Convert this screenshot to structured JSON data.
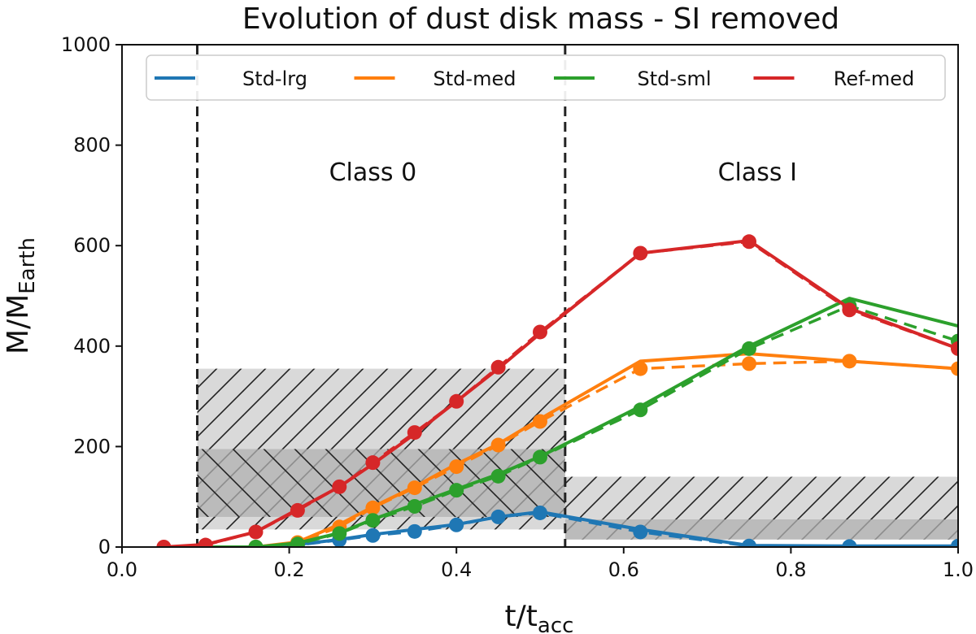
{
  "chart_data": {
    "type": "line",
    "title": "Evolution of dust disk mass - SI removed",
    "xlabel_main": "t/t",
    "xlabel_sub": "acc",
    "ylabel_main": "M/M",
    "ylabel_sub": "Earth",
    "xlim": [
      0.0,
      1.0
    ],
    "ylim": [
      0,
      1000
    ],
    "xticks": [
      "0.0",
      "0.2",
      "0.4",
      "0.6",
      "0.8",
      "1.0"
    ],
    "yticks": [
      "0",
      "200",
      "400",
      "600",
      "800",
      "1000"
    ],
    "legend_position": "top",
    "vlines": [
      0.09,
      0.53
    ],
    "regions": [
      {
        "label": "Class 0",
        "x": 0.3,
        "y": 730
      },
      {
        "label": "Class I",
        "x": 0.76,
        "y": 730
      }
    ],
    "shaded_bands": [
      {
        "x": [
          0.09,
          0.53
        ],
        "y": [
          35,
          355
        ],
        "hatch": "/",
        "shade": "light"
      },
      {
        "x": [
          0.09,
          0.53
        ],
        "y": [
          60,
          195
        ],
        "hatch": "\\",
        "shade": "dark"
      },
      {
        "x": [
          0.53,
          1.0
        ],
        "y": [
          15,
          140
        ],
        "hatch": "/",
        "shade": "light"
      },
      {
        "x": [
          0.53,
          1.0
        ],
        "y": [
          15,
          55
        ],
        "hatch": "",
        "shade": "dark"
      }
    ],
    "series": [
      {
        "name": "Std-lrg",
        "color": "#1f77b4",
        "x": [
          0.1,
          0.16,
          0.21,
          0.26,
          0.3,
          0.35,
          0.4,
          0.45,
          0.5,
          0.62,
          0.75,
          0.87,
          1.0
        ],
        "solid": [
          0,
          0,
          5,
          15,
          25,
          35,
          45,
          60,
          70,
          35,
          3,
          2,
          2
        ],
        "markers": [
          0,
          0,
          4,
          14,
          23,
          31,
          44,
          60,
          68,
          30,
          2,
          1,
          2
        ]
      },
      {
        "name": "Std-med",
        "color": "#ff7f0e",
        "x": [
          0.1,
          0.16,
          0.21,
          0.26,
          0.3,
          0.35,
          0.4,
          0.45,
          0.5,
          0.62,
          0.75,
          0.87,
          1.0
        ],
        "solid": [
          0,
          0,
          10,
          45,
          80,
          120,
          165,
          205,
          255,
          370,
          385,
          370,
          355
        ],
        "markers": [
          0,
          0,
          9,
          40,
          78,
          118,
          160,
          203,
          250,
          355,
          365,
          370,
          355
        ]
      },
      {
        "name": "Std-sml",
        "color": "#2ca02c",
        "x": [
          0.1,
          0.16,
          0.21,
          0.26,
          0.3,
          0.35,
          0.4,
          0.45,
          0.5,
          0.62,
          0.75,
          0.87,
          1.0
        ],
        "solid": [
          0,
          0,
          8,
          28,
          55,
          85,
          115,
          145,
          180,
          280,
          400,
          495,
          440
        ],
        "markers": [
          0,
          0,
          6,
          27,
          53,
          81,
          113,
          141,
          179,
          273,
          395,
          480,
          410
        ]
      },
      {
        "name": "Ref-med",
        "color": "#d62728",
        "x": [
          0.05,
          0.1,
          0.16,
          0.21,
          0.26,
          0.3,
          0.35,
          0.4,
          0.45,
          0.5,
          0.62,
          0.75,
          0.87,
          1.0
        ],
        "solid": [
          0,
          5,
          30,
          75,
          120,
          165,
          225,
          290,
          355,
          425,
          585,
          610,
          475,
          395
        ],
        "markers": [
          0,
          4,
          30,
          73,
          120,
          168,
          228,
          290,
          358,
          428,
          585,
          608,
          472,
          395
        ]
      }
    ]
  }
}
